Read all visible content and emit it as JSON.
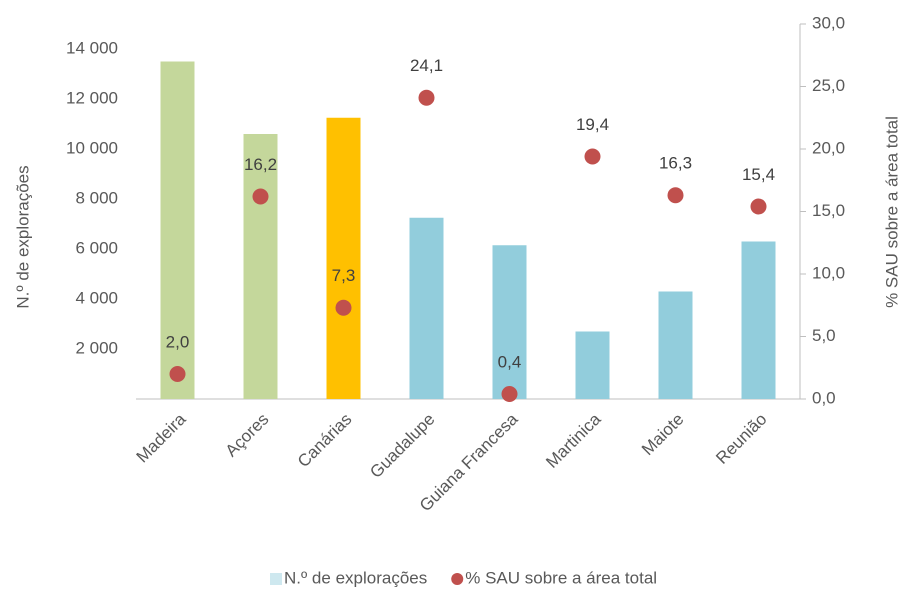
{
  "chart_data": {
    "type": "bar",
    "categories": [
      "Madeira",
      "Açores",
      "Canárias",
      "Guadalupe",
      "Guiana Francesa",
      "Martinica",
      "Maiote",
      "Reunião"
    ],
    "series": [
      {
        "name": "N.º de explorações",
        "type": "bar",
        "color": "#92cddc",
        "colors": [
          "#c4d79b",
          "#c4d79b",
          "#ffc000",
          "#92cddc",
          "#92cddc",
          "#92cddc",
          "#92cddc",
          "#92cddc"
        ],
        "values": [
          13500,
          10600,
          11250,
          7250,
          6150,
          2700,
          4300,
          6300
        ]
      },
      {
        "name": "% SAU sobre a área total",
        "type": "scatter",
        "axis": "y2",
        "color": "#c0504d",
        "values": [
          2.0,
          16.2,
          7.3,
          24.1,
          0.4,
          19.4,
          16.3,
          15.4
        ],
        "value_labels": [
          "2,0",
          "16,2",
          "7,3",
          "24,1",
          "0,4",
          "19,4",
          "16,3",
          "15,4"
        ]
      }
    ],
    "ylabel": "N.º de explorações",
    "y2label": "% SAU sobre a área total",
    "ylim": [
      0,
      15000
    ],
    "yticks": [
      {
        "value": 2000,
        "label": "2 000"
      },
      {
        "value": 4000,
        "label": "4 000"
      },
      {
        "value": 6000,
        "label": "6 000"
      },
      {
        "value": 8000,
        "label": "8 000"
      },
      {
        "value": 10000,
        "label": "10 000"
      },
      {
        "value": 12000,
        "label": "12 000"
      },
      {
        "value": 14000,
        "label": "14 000"
      }
    ],
    "y2lim": [
      0,
      30
    ],
    "y2ticks": [
      {
        "value": 0,
        "label": "0,0"
      },
      {
        "value": 5,
        "label": "5,0"
      },
      {
        "value": 10,
        "label": "10,0"
      },
      {
        "value": 15,
        "label": "15,0"
      },
      {
        "value": 20,
        "label": "20,0"
      },
      {
        "value": 25,
        "label": "25,0"
      },
      {
        "value": 30,
        "label": "30,0"
      }
    ],
    "legend": "bottom"
  }
}
